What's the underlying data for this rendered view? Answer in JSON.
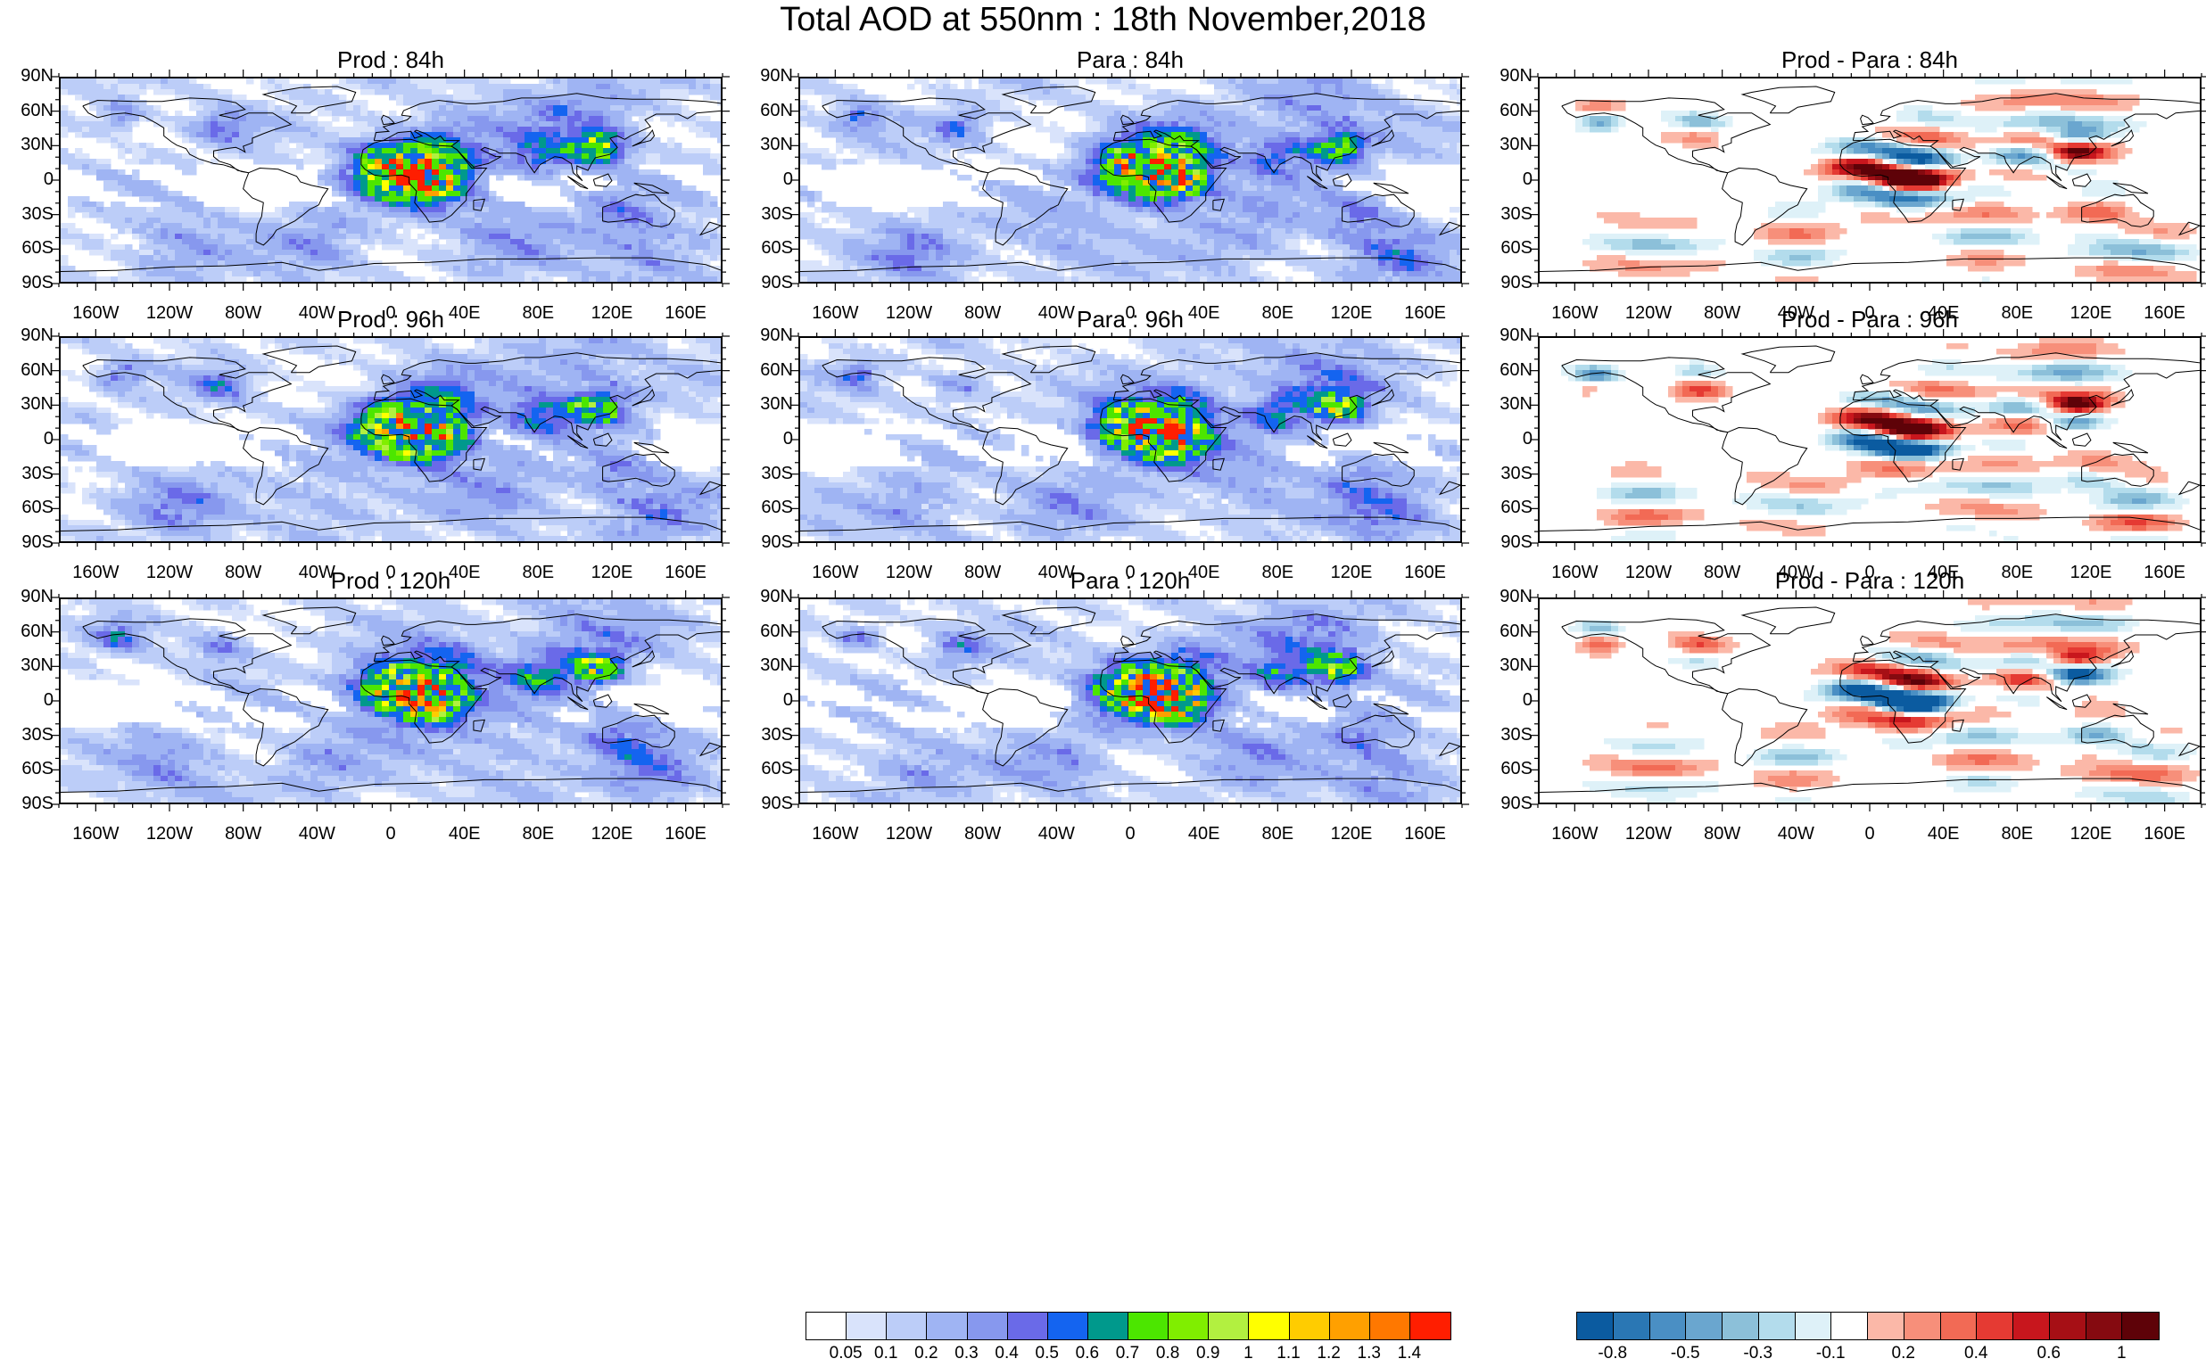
{
  "title": "Total AOD at 550nm : 18th November,2018",
  "panels": [
    {
      "id": "p00",
      "title": "Prod : 84h",
      "kind": "aod",
      "seed": 11
    },
    {
      "id": "p01",
      "title": "Para : 84h",
      "kind": "aod",
      "seed": 23
    },
    {
      "id": "p02",
      "title": "Prod - Para : 84h",
      "kind": "diff",
      "seed": 37
    },
    {
      "id": "p10",
      "title": "Prod : 96h",
      "kind": "aod",
      "seed": 41
    },
    {
      "id": "p11",
      "title": "Para : 96h",
      "kind": "aod",
      "seed": 53
    },
    {
      "id": "p12",
      "title": "Prod - Para : 96h",
      "kind": "diff",
      "seed": 67
    },
    {
      "id": "p20",
      "title": "Prod : 120h",
      "kind": "aod",
      "seed": 71
    },
    {
      "id": "p21",
      "title": "Para : 120h",
      "kind": "aod",
      "seed": 83
    },
    {
      "id": "p22",
      "title": "Prod - Para : 120h",
      "kind": "diff",
      "seed": 97
    }
  ],
  "lat_labels": [
    "90N",
    "60N",
    "30N",
    "0",
    "30S",
    "60S",
    "90S"
  ],
  "lon_labels": [
    "160W",
    "120W",
    "80W",
    "40W",
    "0",
    "40E",
    "80E",
    "120E",
    "160E"
  ],
  "colorbars": {
    "aod": {
      "colors": [
        "#ffffff",
        "#d9e3fb",
        "#bccdf8",
        "#9fb4f3",
        "#8798ee",
        "#6a6ae8",
        "#1464f0",
        "#00998c",
        "#4ce600",
        "#80ee00",
        "#b2f040",
        "#ffff00",
        "#ffcc00",
        "#ffa000",
        "#ff7800",
        "#ff1e00"
      ],
      "labels": [
        "0.05",
        "0.1",
        "0.2",
        "0.3",
        "0.4",
        "0.5",
        "0.6",
        "0.7",
        "0.8",
        "0.9",
        "1",
        "1.1",
        "1.2",
        "1.3",
        "1.4"
      ]
    },
    "diff": {
      "colors": [
        "#0b5ba0",
        "#2a77b4",
        "#4a8fc4",
        "#6aa6cf",
        "#8cc0d9",
        "#b3dcec",
        "#def1f8",
        "#ffffff",
        "#fbb8a8",
        "#f78f7a",
        "#f26a55",
        "#e53a33",
        "#c8161d",
        "#a60f15",
        "#850a10",
        "#5e0208"
      ],
      "labels": [
        "-0.8",
        "-0.5",
        "-0.3",
        "-0.1",
        "0.2",
        "0.4",
        "0.6",
        "1"
      ],
      "label_slots": [
        1,
        3,
        5,
        7,
        9,
        11,
        13,
        15
      ]
    }
  }
}
